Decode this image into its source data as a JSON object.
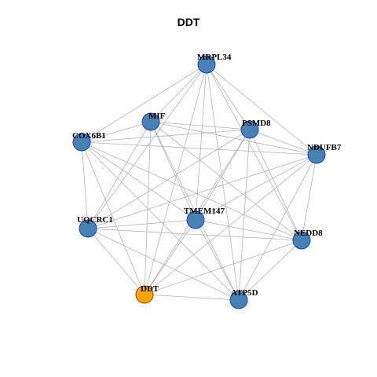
{
  "title": "DDT",
  "colors": {
    "node_fill": "#4682b4",
    "node_stroke": "#1f3fbf",
    "highlight_fill": "#ffa500",
    "highlight_stroke": "#8b4513",
    "edge": "#b3b3b3"
  },
  "graph": {
    "nodes": [
      {
        "id": "MRPL34",
        "label": "MRPL34",
        "highlight": false
      },
      {
        "id": "MIF",
        "label": "MIF",
        "highlight": false
      },
      {
        "id": "PSMD8",
        "label": "PSMD8",
        "highlight": false
      },
      {
        "id": "COX6B1",
        "label": "COX6B1",
        "highlight": false
      },
      {
        "id": "NDUFB7",
        "label": "NDUFB7",
        "highlight": false
      },
      {
        "id": "TMEM147",
        "label": "TMEM147",
        "highlight": false
      },
      {
        "id": "UQCRC1",
        "label": "UQCRC1",
        "highlight": false
      },
      {
        "id": "NEDD8",
        "label": "NEDD8",
        "highlight": false
      },
      {
        "id": "DDT",
        "label": "DDT",
        "highlight": true
      },
      {
        "id": "ATP5D",
        "label": "ATP5D",
        "highlight": false
      }
    ],
    "edges": [
      [
        "MRPL34",
        "MIF"
      ],
      [
        "MRPL34",
        "PSMD8"
      ],
      [
        "MRPL34",
        "COX6B1"
      ],
      [
        "MRPL34",
        "NDUFB7"
      ],
      [
        "MRPL34",
        "TMEM147"
      ],
      [
        "MRPL34",
        "NEDD8"
      ],
      [
        "MRPL34",
        "DDT"
      ],
      [
        "MRPL34",
        "ATP5D"
      ],
      [
        "MRPL34",
        "UQCRC1"
      ],
      [
        "MIF",
        "COX6B1"
      ],
      [
        "MIF",
        "PSMD8"
      ],
      [
        "MIF",
        "NDUFB7"
      ],
      [
        "MIF",
        "TMEM147"
      ],
      [
        "MIF",
        "UQCRC1"
      ],
      [
        "MIF",
        "DDT"
      ],
      [
        "MIF",
        "ATP5D"
      ],
      [
        "MIF",
        "NEDD8"
      ],
      [
        "PSMD8",
        "COX6B1"
      ],
      [
        "PSMD8",
        "NDUFB7"
      ],
      [
        "PSMD8",
        "TMEM147"
      ],
      [
        "PSMD8",
        "UQCRC1"
      ],
      [
        "PSMD8",
        "NEDD8"
      ],
      [
        "PSMD8",
        "ATP5D"
      ],
      [
        "PSMD8",
        "DDT"
      ],
      [
        "COX6B1",
        "NDUFB7"
      ],
      [
        "COX6B1",
        "UQCRC1"
      ],
      [
        "COX6B1",
        "TMEM147"
      ],
      [
        "COX6B1",
        "NEDD8"
      ],
      [
        "COX6B1",
        "ATP5D"
      ],
      [
        "COX6B1",
        "DDT"
      ],
      [
        "NDUFB7",
        "TMEM147"
      ],
      [
        "NDUFB7",
        "UQCRC1"
      ],
      [
        "NDUFB7",
        "NEDD8"
      ],
      [
        "NDUFB7",
        "ATP5D"
      ],
      [
        "NDUFB7",
        "DDT"
      ],
      [
        "TMEM147",
        "UQCRC1"
      ],
      [
        "TMEM147",
        "NEDD8"
      ],
      [
        "TMEM147",
        "DDT"
      ],
      [
        "TMEM147",
        "ATP5D"
      ],
      [
        "UQCRC1",
        "NEDD8"
      ],
      [
        "UQCRC1",
        "DDT"
      ],
      [
        "UQCRC1",
        "ATP5D"
      ],
      [
        "NEDD8",
        "DDT"
      ],
      [
        "NEDD8",
        "ATP5D"
      ],
      [
        "DDT",
        "ATP5D"
      ]
    ]
  }
}
